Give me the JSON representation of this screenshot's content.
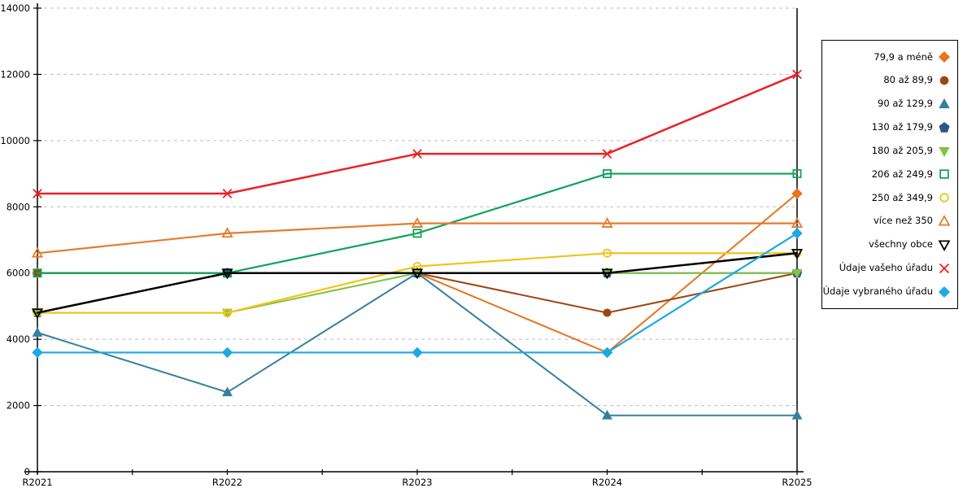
{
  "chart_data": {
    "type": "line",
    "title": "",
    "xlabel": "",
    "ylabel": "",
    "categories": [
      "R2021",
      "R2022",
      "R2023",
      "R2024",
      "R2025"
    ],
    "y_axis": {
      "min": 0,
      "max": 14000,
      "step": 2000,
      "tick_labels": [
        "0",
        "2000",
        "4000",
        "6000",
        "8000",
        "10000",
        "12000",
        "14000"
      ]
    },
    "grid": {
      "visible": true,
      "style": "dashed",
      "color": "#BFBFBF"
    },
    "legend_position": "right",
    "series": [
      {
        "name": "79,9 a méně",
        "color": "#E8751E",
        "marker": "diamond",
        "filled": true,
        "line_width": 2,
        "values": [
          6000,
          6000,
          6000,
          3600,
          8400
        ]
      },
      {
        "name": "80 až 89,9",
        "color": "#9C4613",
        "marker": "circle",
        "filled": true,
        "line_width": 2,
        "values": [
          6000,
          6000,
          6000,
          4800,
          6000
        ]
      },
      {
        "name": "90 až 129,9",
        "color": "#35809E",
        "marker": "triangle-up",
        "filled": true,
        "line_width": 2,
        "values": [
          4200,
          2400,
          6000,
          1700,
          1700
        ]
      },
      {
        "name": "130 až 179,9",
        "color": "#2D5784",
        "marker": "pentagon",
        "filled": true,
        "line_width": 2,
        "values": [
          4800,
          6000,
          6000,
          6000,
          6000
        ]
      },
      {
        "name": "180 až 205,9",
        "color": "#82C341",
        "marker": "triangle-down",
        "filled": true,
        "line_width": 2,
        "values": [
          4800,
          4800,
          6000,
          6000,
          6000
        ]
      },
      {
        "name": "206 až 249,9",
        "color": "#10A35B",
        "marker": "square",
        "filled": false,
        "line_width": 2.2,
        "values": [
          6000,
          6000,
          7200,
          9000,
          9000
        ]
      },
      {
        "name": "250 až 349,9",
        "color": "#F0C419",
        "marker": "circle",
        "filled": false,
        "line_width": 2.2,
        "values": [
          4800,
          4800,
          6200,
          6600,
          6600
        ]
      },
      {
        "name": "více než 350",
        "color": "#E87A2C",
        "marker": "triangle-up",
        "filled": false,
        "line_width": 2.2,
        "values": [
          6600,
          7200,
          7500,
          7500,
          7500
        ]
      },
      {
        "name": "všechny obce",
        "color": "#000000",
        "marker": "triangle-down",
        "filled": false,
        "line_width": 2.5,
        "values": [
          4800,
          6000,
          6000,
          6000,
          6600
        ]
      },
      {
        "name": "Údaje vašeho úřadu",
        "color": "#EA2127",
        "marker": "x",
        "filled": false,
        "line_width": 2.5,
        "values": [
          8400,
          8400,
          9600,
          9600,
          12000
        ]
      },
      {
        "name": "Údaje vybraného úřadu",
        "color": "#1CA9E5",
        "marker": "diamond",
        "filled": true,
        "line_width": 2.2,
        "values": [
          3600,
          3600,
          3600,
          3600,
          7200
        ]
      }
    ]
  },
  "layout_colors": {
    "axis": "#000000",
    "background": "#FFFFFF",
    "grid": "#BFBFBF"
  }
}
